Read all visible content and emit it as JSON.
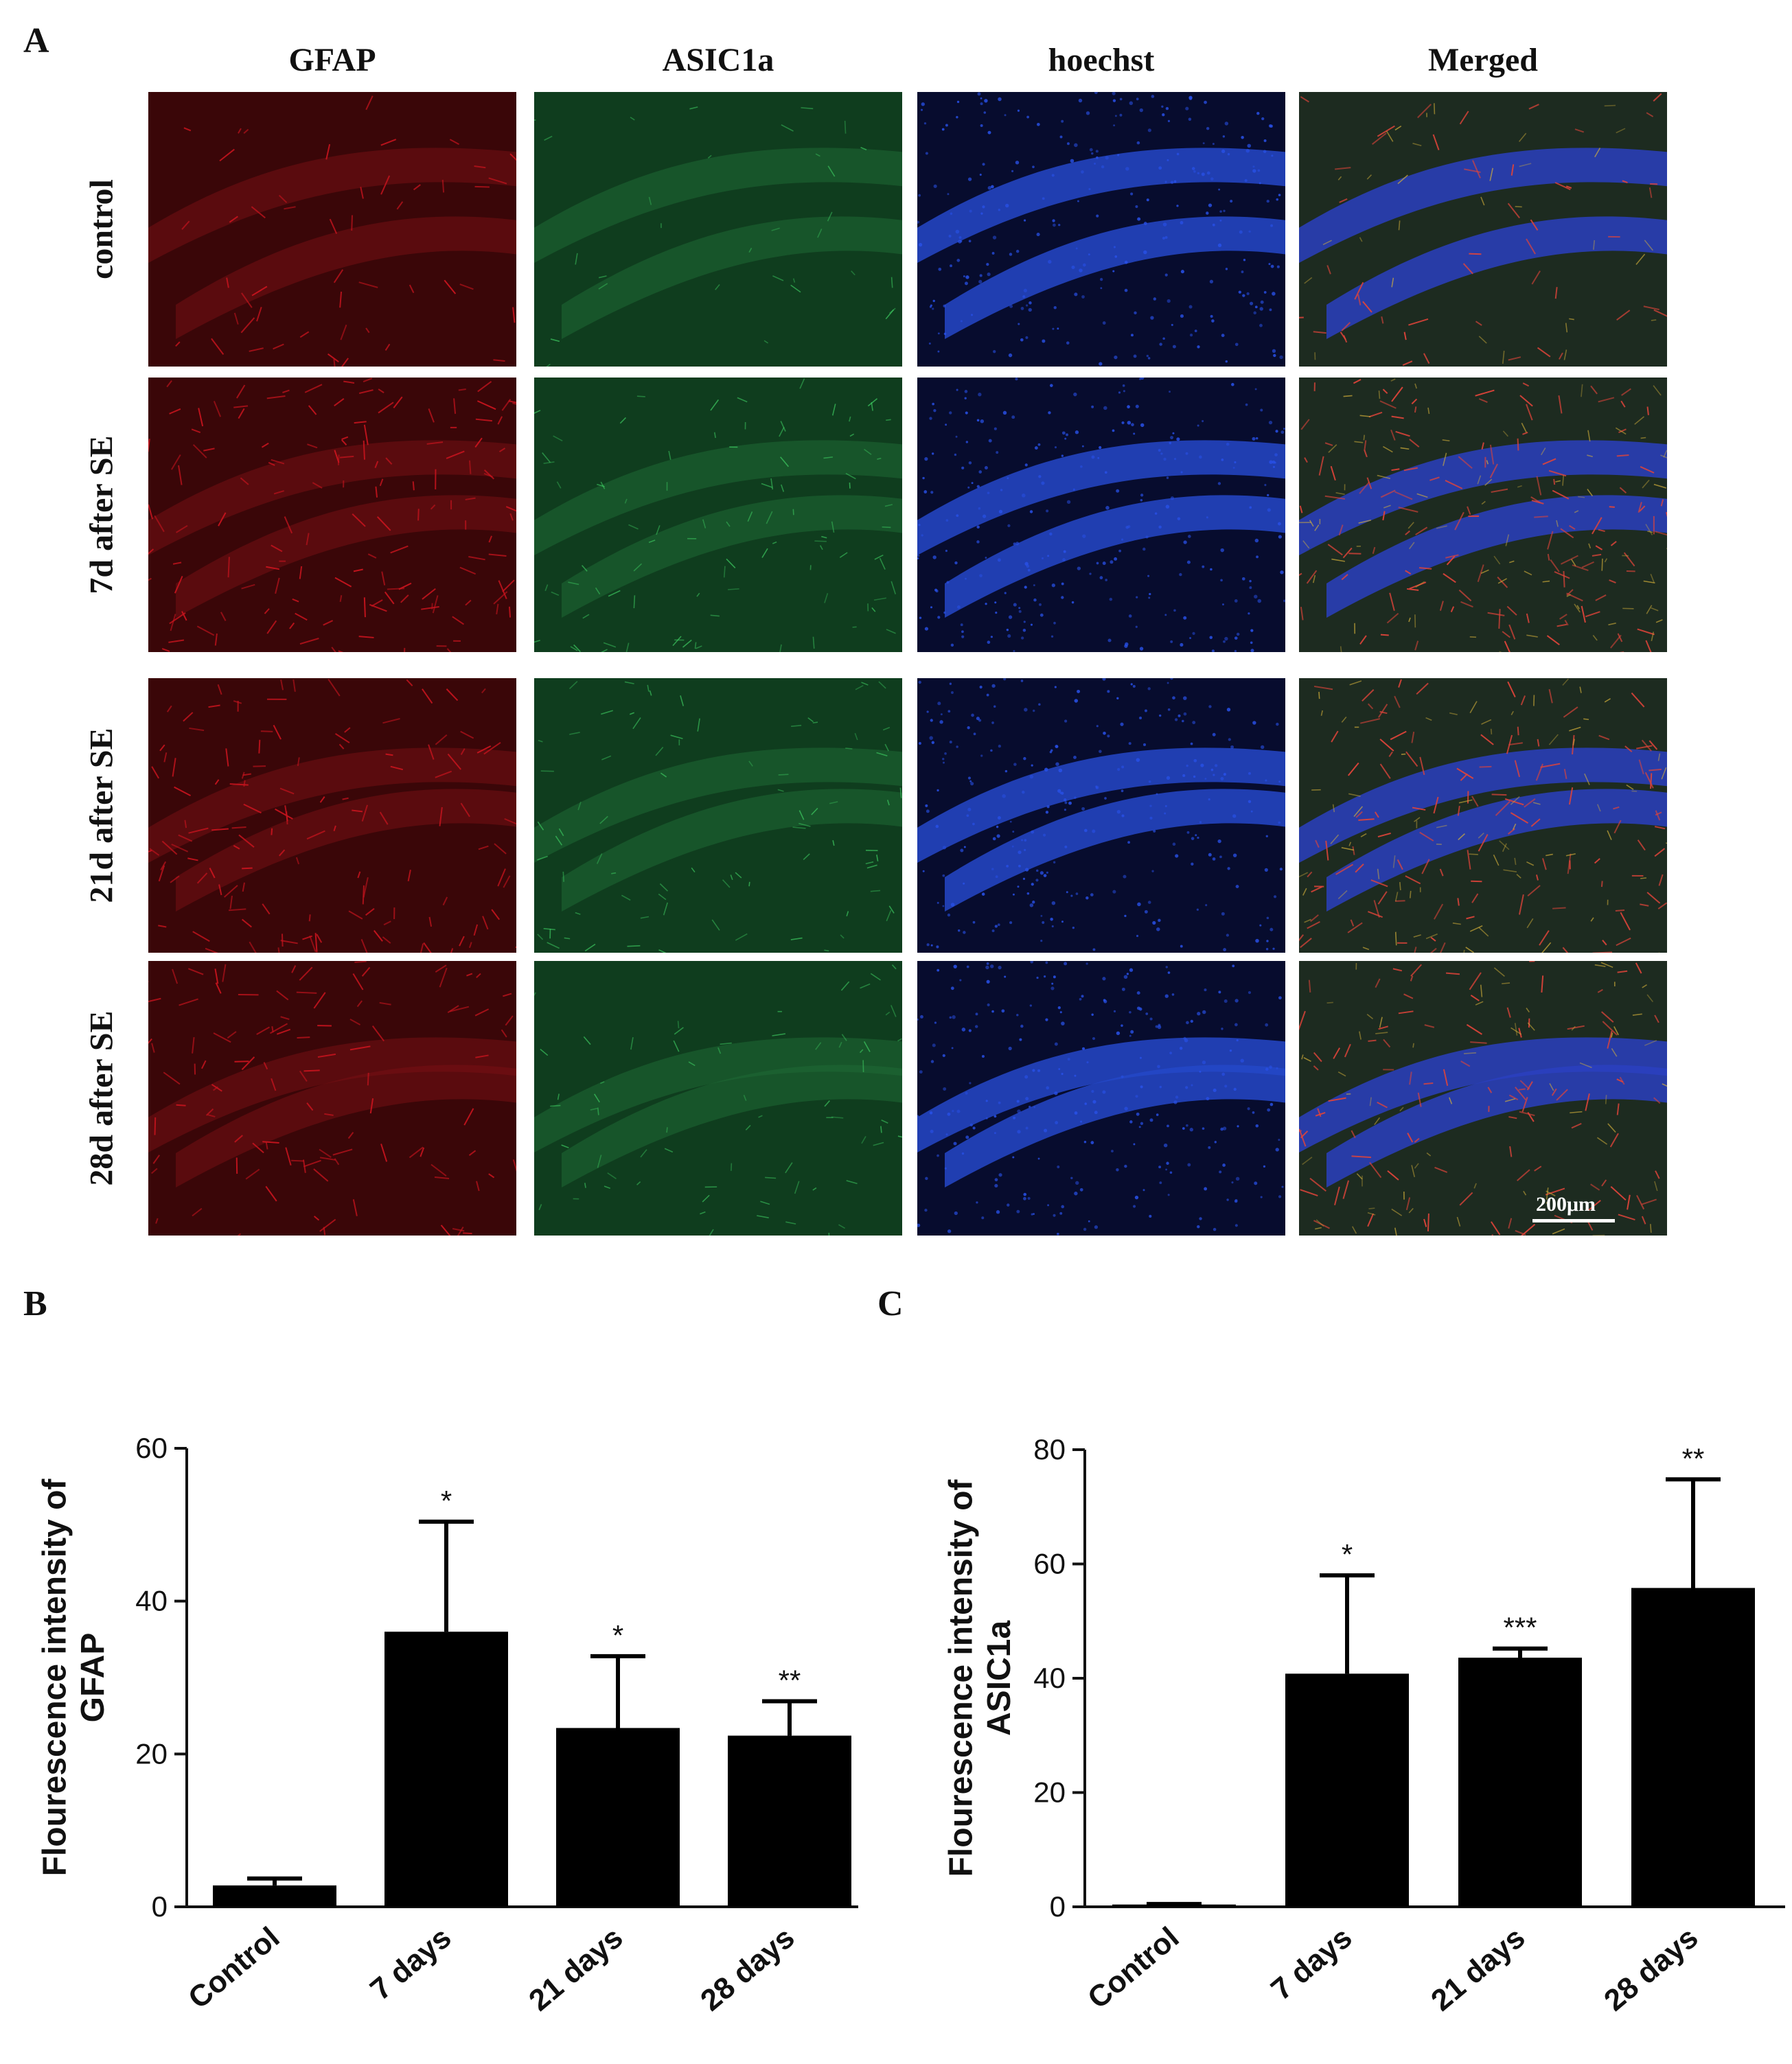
{
  "panel_letters": {
    "a": "A",
    "b": "B",
    "c": "C"
  },
  "micrographs": {
    "columns": [
      "GFAP",
      "ASIC1a",
      "hoechst",
      "Merged"
    ],
    "rows": [
      "control",
      "7d after SE",
      "21d after SE",
      "28d after SE"
    ],
    "channel_colors": {
      "gfap": "#c8141e",
      "asic1a": "#19a03c",
      "hoechst": "#2850e6"
    },
    "scale_bar": "200μm"
  },
  "chart_data": [
    {
      "panel": "B",
      "type": "bar",
      "categories": [
        "Control",
        "7 days",
        "21 days",
        "28 days"
      ],
      "values": [
        2.8,
        36,
        23.4,
        22.4
      ],
      "errors": [
        0.9,
        14.4,
        9.4,
        4.5
      ],
      "significance": [
        "",
        "*",
        "*",
        "**"
      ],
      "title": "",
      "xlabel": "",
      "ylabel": [
        "Flourescence intensity of",
        "GFAP"
      ],
      "ylim": [
        0,
        60
      ],
      "yticks": [
        0,
        20,
        40,
        60
      ],
      "bar_color": "#000000",
      "grid": false,
      "legend": "none"
    },
    {
      "panel": "C",
      "type": "bar",
      "categories": [
        "Control",
        "7 days",
        "21 days",
        "28 days"
      ],
      "values": [
        0.4,
        40.8,
        43.6,
        55.8
      ],
      "errors": [
        0.1,
        17.2,
        1.6,
        19.0
      ],
      "significance": [
        "",
        "*",
        "***",
        "**"
      ],
      "title": "",
      "xlabel": "",
      "ylabel": [
        "Flourescence intensity of",
        "ASIC1a"
      ],
      "ylim": [
        0,
        80
      ],
      "yticks": [
        0,
        20,
        40,
        60,
        80
      ],
      "bar_color": "#000000",
      "grid": false,
      "legend": "none"
    }
  ]
}
